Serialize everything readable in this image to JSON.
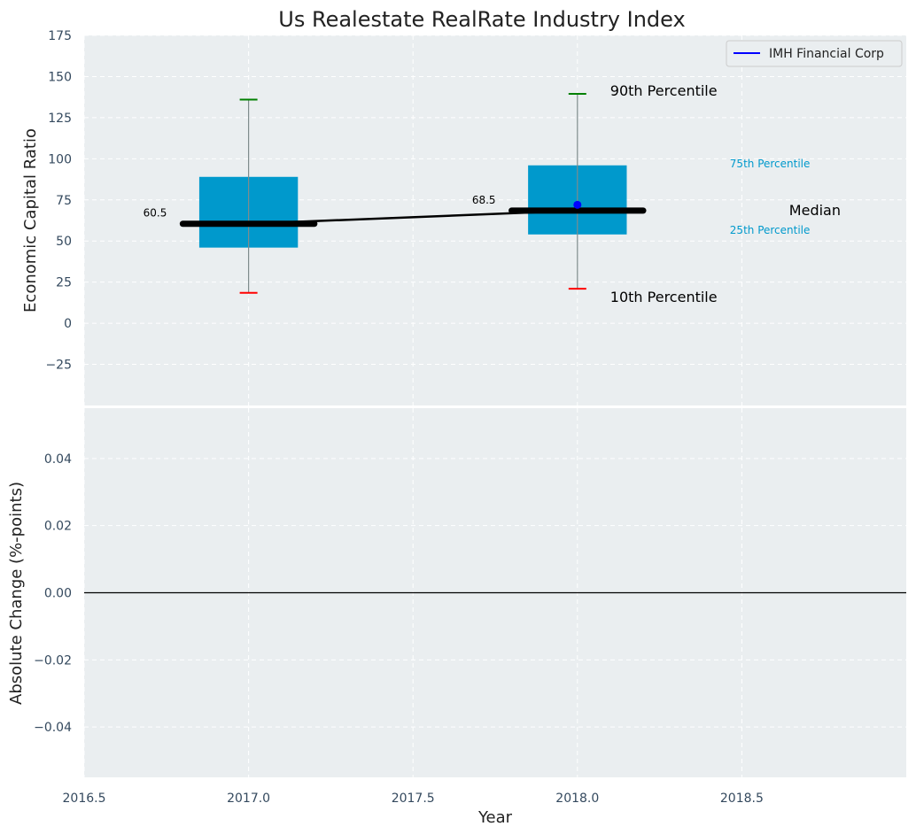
{
  "chart_data": [
    {
      "type": "box",
      "title": "Us Realestate RealRate Industry Index",
      "ylabel": "Economic Capital Ratio",
      "xlim": [
        2016.5,
        2019.0
      ],
      "ylim": [
        -50,
        175
      ],
      "xticks": [
        "2016.5",
        "2017.0",
        "2017.5",
        "2018.0",
        "2018.5"
      ],
      "yticks": [
        "−25",
        "0",
        "25",
        "50",
        "75",
        "100",
        "125",
        "150",
        "175"
      ],
      "grid": true,
      "legend": {
        "placement": "top-right",
        "entries": [
          "IMH Financial Corp"
        ]
      },
      "boxes": [
        {
          "x": 2017.0,
          "p10": 18.5,
          "p25": 46,
          "median": 60.5,
          "p75": 89,
          "p90": 136,
          "median_label": "60.5"
        },
        {
          "x": 2018.0,
          "p10": 21,
          "p25": 54,
          "median": 68.5,
          "p75": 96,
          "p90": 139.5,
          "median_label": "68.5"
        }
      ],
      "median_line": {
        "x": [
          2017.0,
          2018.0
        ],
        "y": [
          60.5,
          68.5
        ]
      },
      "company_series": {
        "name": "IMH Financial Corp",
        "x": [
          2018.0
        ],
        "y": [
          72
        ]
      },
      "annotations": {
        "p90": "90th Percentile",
        "p75": "75th Percentile",
        "median": "Median",
        "p25": "25th Percentile",
        "p10": "10th Percentile"
      },
      "colors": {
        "box": "#0099cc",
        "p90": "#008000",
        "p10": "#ff0000",
        "company": "#0000ff",
        "median": "#000000",
        "background": "#eaeef0"
      }
    },
    {
      "type": "line",
      "xlabel": "Year",
      "ylabel": "Absolute Change (%-points)",
      "xlim": [
        2016.5,
        2019.0
      ],
      "ylim": [
        -0.055,
        0.055
      ],
      "xticks": [
        "2016.5",
        "2017.0",
        "2017.5",
        "2018.0",
        "2018.5"
      ],
      "yticks": [
        "−0.04",
        "−0.02",
        "0.00",
        "0.02",
        "0.04"
      ],
      "zero_line": 0,
      "grid": true
    }
  ]
}
